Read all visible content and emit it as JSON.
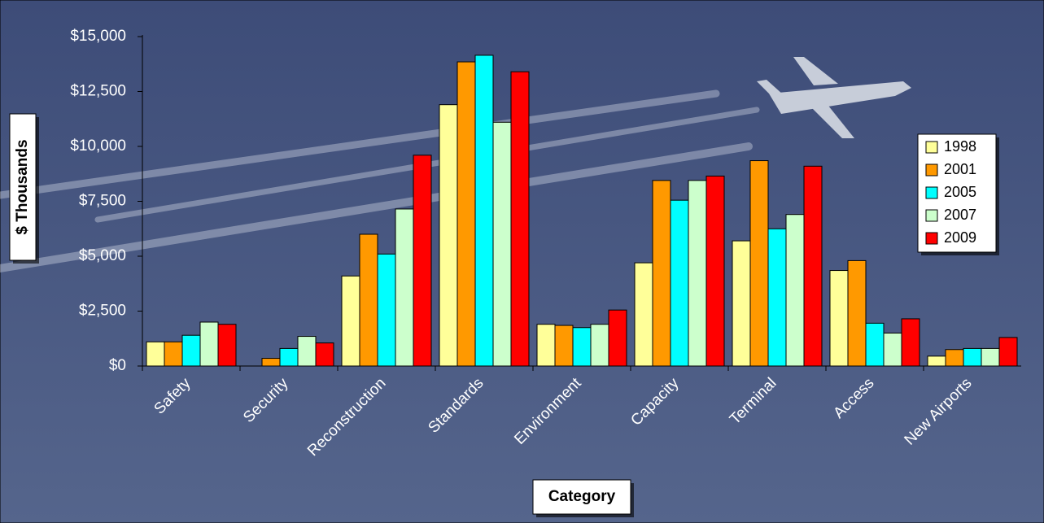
{
  "chart_data": {
    "type": "bar",
    "x_label": "Category",
    "y_label": "$ Thousands",
    "categories": [
      "Safety",
      "Security",
      "Reconstruction",
      "Standards",
      "Environment",
      "Capacity",
      "Terminal",
      "Access",
      "New Airports"
    ],
    "series": [
      {
        "name": "1998",
        "color": "#ffff99",
        "values": [
          1100,
          0,
          4100,
          11900,
          1900,
          4700,
          5700,
          4350,
          450
        ]
      },
      {
        "name": "2001",
        "color": "#ff9900",
        "values": [
          1100,
          350,
          6000,
          13850,
          1850,
          8450,
          9350,
          4800,
          750
        ]
      },
      {
        "name": "2005",
        "color": "#00ffff",
        "values": [
          1400,
          800,
          5100,
          14150,
          1750,
          7550,
          6250,
          1950,
          800
        ]
      },
      {
        "name": "2007",
        "color": "#ccffcc",
        "values": [
          2000,
          1350,
          7150,
          11100,
          1900,
          8450,
          6900,
          1500,
          800
        ]
      },
      {
        "name": "2009",
        "color": "#ff0000",
        "values": [
          1900,
          1050,
          9600,
          13400,
          2550,
          8650,
          9100,
          2150,
          1300
        ]
      }
    ],
    "ylim": [
      0,
      15000
    ],
    "yticks": [
      {
        "value": 0,
        "label": "$0"
      },
      {
        "value": 2500,
        "label": "$2,500"
      },
      {
        "value": 5000,
        "label": "$5,000"
      },
      {
        "value": 7500,
        "label": "$7,500"
      },
      {
        "value": 10000,
        "label": "$10,000"
      },
      {
        "value": 12500,
        "label": "$12,500"
      },
      {
        "value": 15000,
        "label": "$15,000"
      }
    ],
    "grid": false,
    "legend": "right"
  }
}
